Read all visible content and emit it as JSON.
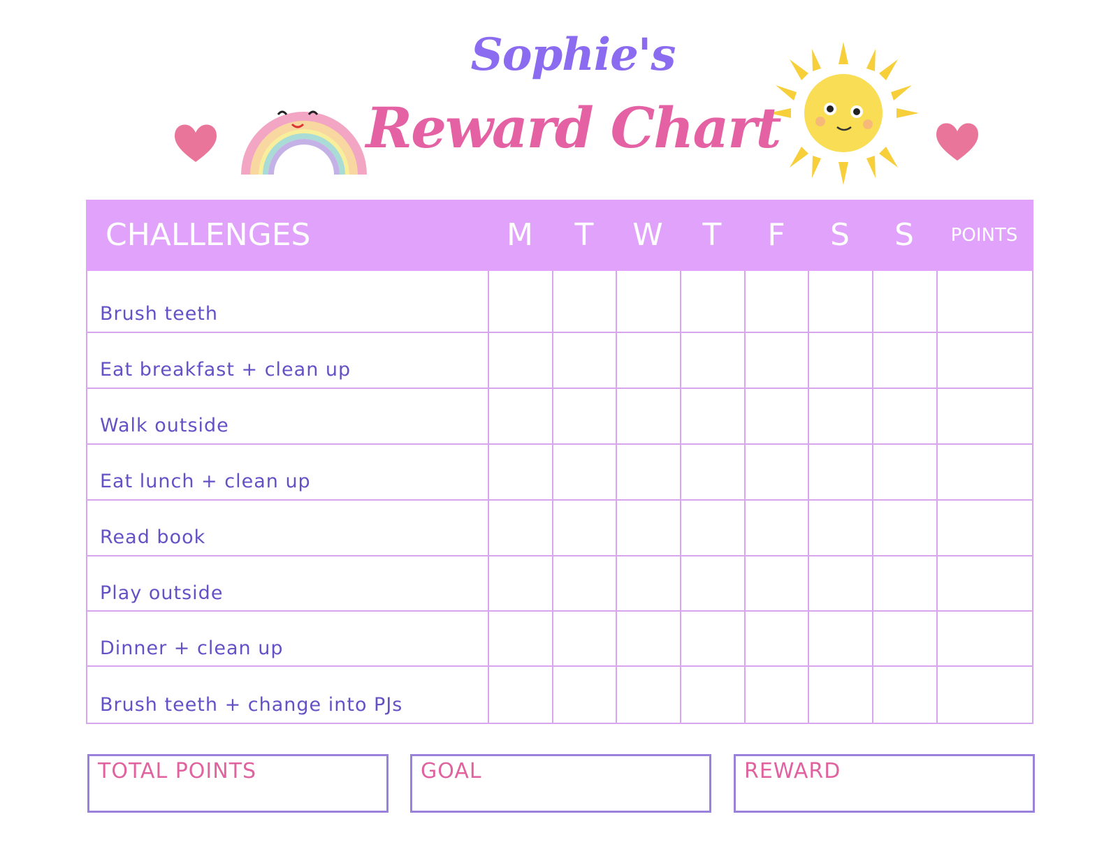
{
  "title": {
    "line1": "Sophie's",
    "line2": "Reward Chart"
  },
  "colors": {
    "header_bg": "#e0a2fb",
    "task_text": "#6551c6",
    "title_pink": "#e462a4",
    "title_purple": "#8b6cf0",
    "grid": "#d8a6ee",
    "box_border": "#9a82dc",
    "box_label": "#e063a0"
  },
  "decorations": [
    "heart-icon",
    "rainbow-icon",
    "sun-icon",
    "heart-icon"
  ],
  "table": {
    "challenges_header": "CHALLENGES",
    "days": [
      "M",
      "T",
      "W",
      "T",
      "F",
      "S",
      "S"
    ],
    "points_header": "POINTS",
    "rows": [
      "Brush teeth",
      "Eat breakfast + clean up",
      "Walk outside",
      "Eat lunch + clean up",
      "Read book",
      "Play outside",
      "Dinner + clean up",
      "Brush teeth + change into PJs"
    ]
  },
  "footer": {
    "total_points": "TOTAL POINTS",
    "goal": "GOAL",
    "reward": "REWARD"
  }
}
